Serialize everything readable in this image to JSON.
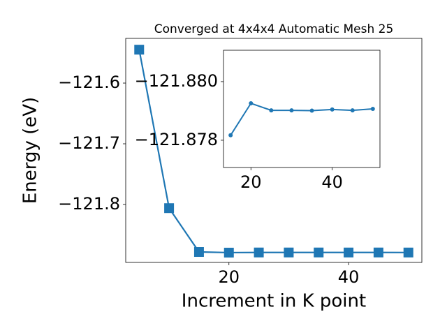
{
  "chart_data": [
    {
      "type": "line",
      "title": "Converged at 4x4x4 Automatic Mesh 25",
      "x_label": "Increment in K point",
      "y_label": "Energy (eV)",
      "x": [
        5,
        10,
        15,
        20,
        25,
        30,
        35,
        40,
        45,
        50
      ],
      "series": [
        {
          "color": "#1f77b4",
          "marker": "square",
          "values": [
            -121.545,
            -121.806,
            -121.87817,
            -121.87926,
            -121.87902,
            -121.87902,
            -121.87901,
            -121.87905,
            -121.87902,
            -121.87907
          ]
        }
      ],
      "xlim": [
        2.75,
        52.25
      ],
      "xticks": [
        20,
        40
      ],
      "ylim": [
        -121.8954,
        -121.5264
      ],
      "yticks": [
        {
          "value": -121.6,
          "label": "−121.6"
        },
        {
          "value": -121.7,
          "label": "−121.7"
        },
        {
          "value": -121.8,
          "label": "−121.8"
        }
      ]
    },
    {
      "type": "line",
      "x": [
        15,
        20,
        25,
        30,
        35,
        40,
        45,
        50
      ],
      "series": [
        {
          "color": "#1f77b4",
          "marker": "circle",
          "values": [
            -121.87817,
            -121.87926,
            -121.87902,
            -121.87902,
            -121.87901,
            -121.87905,
            -121.87902,
            -121.87907
          ]
        }
      ],
      "xlim": [
        13.25,
        51.75
      ],
      "xticks": [
        20,
        40
      ],
      "ylim": [
        -121.87707,
        -121.88107
      ],
      "yticks": [
        {
          "value": -121.88,
          "label": "−121.880"
        },
        {
          "value": -121.878,
          "label": "−121.878"
        }
      ]
    }
  ]
}
